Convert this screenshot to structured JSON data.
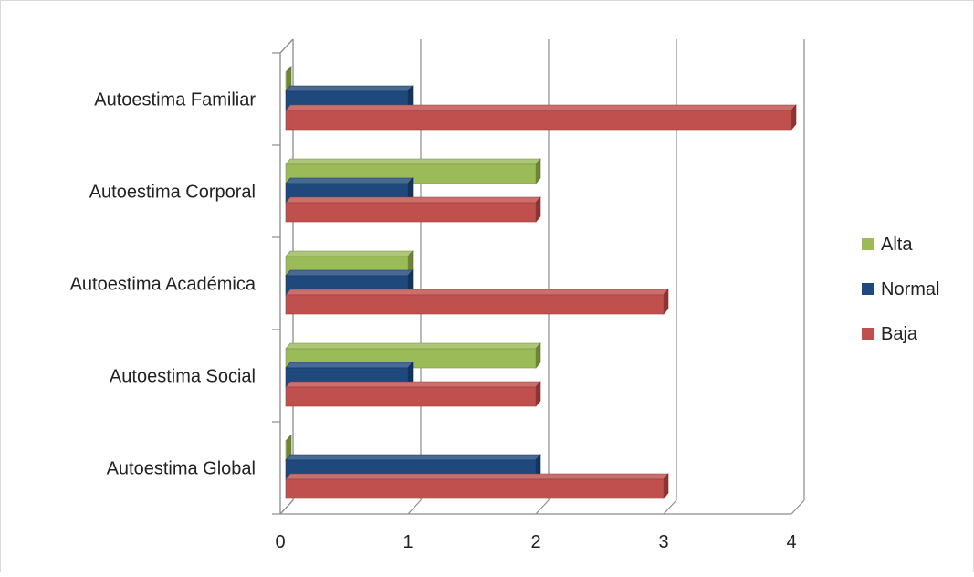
{
  "chart_data": {
    "type": "bar",
    "orientation": "horizontal",
    "three_d": true,
    "title": "",
    "xlabel": "",
    "ylabel": "",
    "categories": [
      "Autoestima Familiar",
      "Autoestima Corporal",
      "Autoestima Académica",
      "Autoestima Social",
      "Autoestima Global"
    ],
    "series": [
      {
        "name": "Alta",
        "values": [
          0,
          2,
          1,
          2,
          0
        ],
        "color": "#9bbb59"
      },
      {
        "name": "Normal",
        "values": [
          1,
          1,
          1,
          1,
          2
        ],
        "color": "#1f497d"
      },
      {
        "name": "Baja",
        "values": [
          4,
          2,
          3,
          2,
          3
        ],
        "color": "#c0504d"
      }
    ],
    "xlim": [
      0,
      4
    ],
    "xticks": [
      "0",
      "1",
      "2",
      "3",
      "4"
    ],
    "grid": true,
    "legend_position": "right"
  }
}
